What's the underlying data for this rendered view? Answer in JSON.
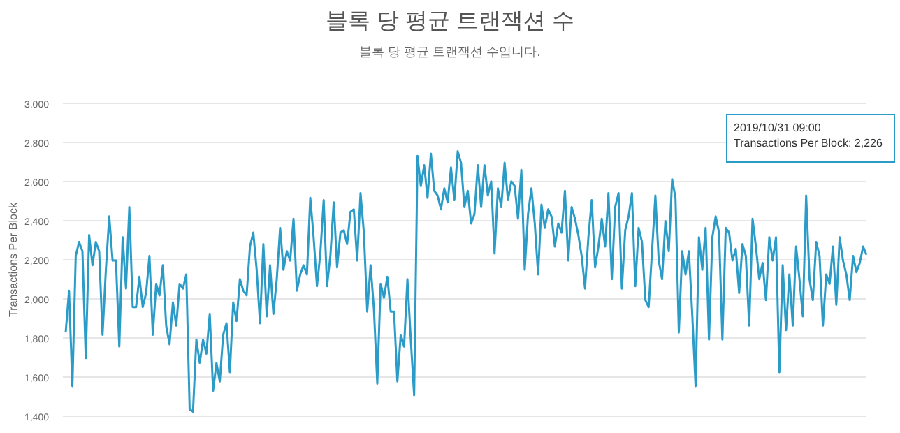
{
  "chart_data": {
    "type": "line",
    "title": "블록 당 평균 트랜잭션 수",
    "subtitle": "블록 당 평균 트랜잭션 수입니다.",
    "ylabel": "Transactions Per Block",
    "categories": [
      null,
      null,
      null,
      null,
      null,
      null,
      null,
      null,
      null,
      null,
      null,
      null,
      null,
      null,
      null,
      null,
      null,
      null,
      null,
      null,
      null,
      null,
      null,
      null,
      null,
      null,
      null,
      null,
      null,
      null,
      null,
      null,
      null,
      null,
      null,
      null,
      null,
      null,
      null,
      null,
      null,
      null,
      null,
      null,
      null,
      null,
      null,
      null,
      null,
      null,
      null,
      null,
      null,
      null,
      null,
      null,
      null,
      null,
      null,
      null,
      null,
      null,
      null,
      null,
      null,
      null,
      null,
      null,
      null,
      null,
      null,
      null,
      null,
      null,
      null,
      null,
      null,
      null,
      null,
      null,
      null,
      null,
      null,
      null,
      null,
      null,
      null,
      null,
      null,
      null,
      null,
      null,
      null,
      null,
      null,
      null,
      null,
      null,
      null,
      null,
      null,
      null,
      null,
      null,
      null,
      null,
      null,
      null,
      null,
      null,
      null,
      null,
      null,
      null,
      null,
      null,
      null,
      null,
      null,
      null,
      null,
      null,
      null,
      null,
      null,
      null,
      null,
      null,
      null,
      null,
      null,
      null,
      null,
      null,
      null,
      null,
      null,
      null,
      null,
      null,
      null,
      null,
      null,
      null,
      null,
      null,
      null,
      null,
      null,
      null,
      null,
      null,
      null,
      null,
      null,
      null,
      null,
      null,
      null,
      null,
      null,
      null,
      null,
      null,
      null,
      null,
      null,
      null,
      null,
      null,
      null,
      null,
      null,
      null,
      null,
      null,
      null,
      null,
      null,
      null,
      null,
      null,
      null,
      null,
      null,
      null,
      null,
      null,
      null,
      null,
      null,
      null,
      null,
      null,
      null,
      null,
      null,
      null,
      null,
      null,
      null,
      null,
      null,
      null,
      null,
      null,
      null,
      null,
      null,
      null,
      null,
      null,
      null,
      null,
      null,
      null,
      null,
      null,
      null,
      null,
      null,
      null,
      null,
      null,
      null,
      null,
      null,
      null,
      null,
      null,
      null,
      null,
      null,
      null,
      null,
      null,
      null,
      null,
      null,
      null
    ],
    "series": [
      {
        "color": "#2b9cc8",
        "values": [
          1828,
          2042,
          1554,
          2220,
          2291,
          2244,
          1697,
          2327,
          2172,
          2291,
          2244,
          1816,
          2149,
          2422,
          2196,
          2196,
          1756,
          2315,
          2053,
          2470,
          1958,
          1958,
          2113,
          1958,
          2030,
          2220,
          1816,
          2077,
          2018,
          2172,
          1863,
          1768,
          1982,
          1863,
          2077,
          2053,
          2125,
          1435,
          1423,
          1792,
          1673,
          1792,
          1720,
          1923,
          1530,
          1673,
          1578,
          1816,
          1875,
          1625,
          1982,
          1887,
          2101,
          2042,
          2018,
          2268,
          2339,
          2149,
          1875,
          2280,
          1911,
          2172,
          1923,
          2101,
          2363,
          2149,
          2244,
          2196,
          2410,
          2042,
          2125,
          2172,
          2125,
          2517,
          2315,
          2065,
          2232,
          2505,
          2065,
          2220,
          2494,
          2161,
          2339,
          2351,
          2280,
          2446,
          2458,
          2196,
          2541,
          2339,
          1935,
          2172,
          1946,
          1566,
          2077,
          2006,
          2113,
          1935,
          1935,
          1578,
          1816,
          1756,
          2101,
          1792,
          1507,
          2731,
          2577,
          2684,
          2517,
          2743,
          2553,
          2529,
          2458,
          2565,
          2494,
          2672,
          2505,
          2755,
          2696,
          2470,
          2553,
          2386,
          2434,
          2684,
          2470,
          2684,
          2529,
          2601,
          2232,
          2565,
          2470,
          2696,
          2505,
          2601,
          2577,
          2410,
          2660,
          2149,
          2434,
          2565,
          2386,
          2125,
          2482,
          2363,
          2458,
          2422,
          2268,
          2386,
          2339,
          2553,
          2196,
          2470,
          2410,
          2327,
          2220,
          2053,
          2315,
          2505,
          2161,
          2268,
          2410,
          2268,
          2541,
          2101,
          2470,
          2541,
          2053,
          2351,
          2422,
          2541,
          2065,
          2363,
          2291,
          1994,
          1958,
          2244,
          2529,
          2196,
          2101,
          2398,
          2244,
          2612,
          2517,
          1828,
          2244,
          2125,
          2244,
          1923,
          1554,
          2315,
          2149,
          2363,
          1792,
          2315,
          2422,
          2339,
          1792,
          2363,
          2339,
          2196,
          2256,
          2030,
          2280,
          2220,
          1863,
          2410,
          2268,
          2101,
          2184,
          1994,
          2315,
          2196,
          2315,
          1625,
          2172,
          1840,
          2125,
          1863,
          2268,
          2101,
          1911,
          2529,
          2101,
          1994,
          2291,
          2220,
          1863,
          2125,
          2077,
          2268,
          1970,
          2315,
          2196,
          2125,
          1994,
          2220,
          2137,
          2184,
          2268,
          2226
        ]
      }
    ],
    "ylim": [
      1400,
      3000
    ],
    "yticks": [
      {
        "value": 1400,
        "label": "1,400"
      },
      {
        "value": 1600,
        "label": "1,600"
      },
      {
        "value": 1800,
        "label": "1,800"
      },
      {
        "value": 2000,
        "label": "2,000"
      },
      {
        "value": 2200,
        "label": "2,200"
      },
      {
        "value": 2400,
        "label": "2,400"
      },
      {
        "value": 2600,
        "label": "2,600"
      },
      {
        "value": 2800,
        "label": "2,800"
      },
      {
        "value": 3000,
        "label": "3,000"
      }
    ],
    "grid": "y",
    "marker": "none",
    "line_style": "solid",
    "annotations": [
      "2019/10/31 09:00",
      "Transactions Per Block: 2,226"
    ]
  }
}
